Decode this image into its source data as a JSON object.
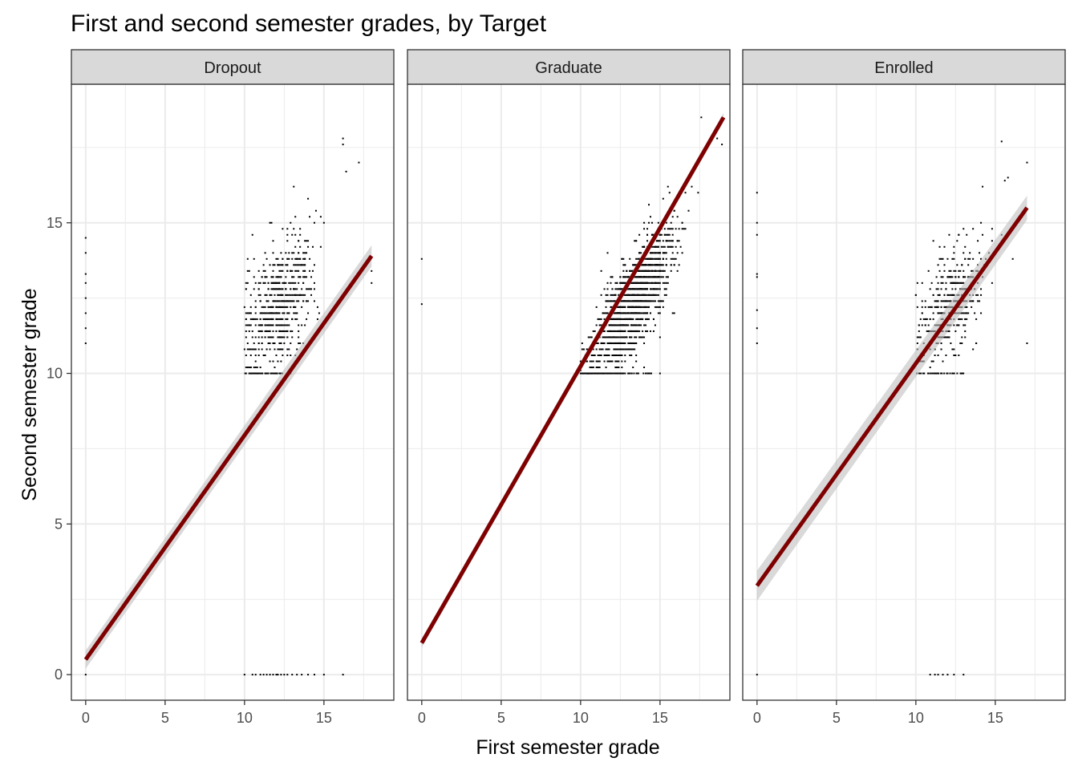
{
  "chart_data": {
    "type": "scatter",
    "title": "First and second semester grades, by Target",
    "xlabel": "First semester grade",
    "ylabel": "Second semester grade",
    "xlim": [
      -0.9,
      19.4
    ],
    "ylim": [
      -0.85,
      19.6
    ],
    "x_ticks": [
      0,
      5,
      10,
      15
    ],
    "y_ticks": [
      0,
      5,
      10,
      15
    ],
    "grid": true,
    "colors": {
      "points": "#000000",
      "fit_line": "#7f0000",
      "confidence_band": "#bfbfbf",
      "strip_fill": "#d9d9d9",
      "grid_major": "#ebebeb",
      "panel_border": "#333333"
    },
    "panels": [
      {
        "name": "Dropout",
        "fit_line": {
          "x": [
            0,
            18
          ],
          "y": [
            0.5,
            13.9
          ]
        },
        "band_halfwidth": [
          0.3,
          0.35
        ],
        "zero_points_x": [
          10,
          10.5,
          10.7,
          11,
          11.2,
          11.4,
          11.6,
          11.8,
          12,
          12.1,
          12.3,
          12.5,
          12.7,
          13,
          13.3,
          13.6,
          14,
          14.4,
          15,
          16.2
        ],
        "zero_points_y": [
          11,
          11.5,
          12,
          12.5,
          13,
          13.3,
          14,
          14.5
        ],
        "cluster": {
          "x_range": [
            10,
            15
          ],
          "x_mean": 12.2,
          "x_sd": 1.1,
          "slope": 0.45,
          "noise_sd": 1.0,
          "y_min": 10,
          "count": 650
        },
        "outliers": [
          [
            16.2,
            17.6
          ],
          [
            16.2,
            17.8
          ],
          [
            17.2,
            17
          ],
          [
            16.4,
            16.7
          ],
          [
            18,
            13
          ],
          [
            18,
            13.4
          ],
          [
            14,
            15.8
          ],
          [
            13.1,
            16.2
          ]
        ]
      },
      {
        "name": "Graduate",
        "fit_line": {
          "x": [
            0,
            19
          ],
          "y": [
            1.05,
            18.5
          ]
        },
        "band_halfwidth": [
          0.15,
          0.15
        ],
        "zero_points_x": [],
        "zero_points_y": [
          12.3,
          13.8
        ],
        "cluster": {
          "x_range": [
            10,
            17.5
          ],
          "x_mean": 13.2,
          "x_sd": 1.3,
          "slope": 0.75,
          "noise_sd": 0.8,
          "y_min": 10,
          "count": 1700
        },
        "outliers": [
          [
            17.6,
            18.5
          ],
          [
            18.6,
            17.8
          ],
          [
            18.9,
            17.6
          ],
          [
            10,
            10.1
          ],
          [
            15,
            10
          ]
        ]
      },
      {
        "name": "Enrolled",
        "fit_line": {
          "x": [
            0,
            17
          ],
          "y": [
            2.95,
            15.5
          ]
        },
        "band_halfwidth": [
          0.5,
          0.4
        ],
        "zero_points_x": [
          10.9,
          11.2,
          11.4,
          11.7,
          12,
          12.4,
          13
        ],
        "zero_points_y": [
          11,
          11.5,
          12.1,
          13.2,
          13.3,
          14.6,
          15,
          16
        ],
        "cluster": {
          "x_range": [
            10,
            15
          ],
          "x_mean": 12.2,
          "x_sd": 1.0,
          "slope": 0.4,
          "noise_sd": 0.9,
          "y_min": 10,
          "count": 450
        },
        "outliers": [
          [
            15.4,
            17.7
          ],
          [
            15.6,
            16.4
          ],
          [
            15.8,
            16.5
          ],
          [
            16.1,
            13.8
          ],
          [
            17,
            17
          ],
          [
            17,
            11
          ],
          [
            15.4,
            14.6
          ],
          [
            14.2,
            16.2
          ]
        ]
      }
    ]
  }
}
